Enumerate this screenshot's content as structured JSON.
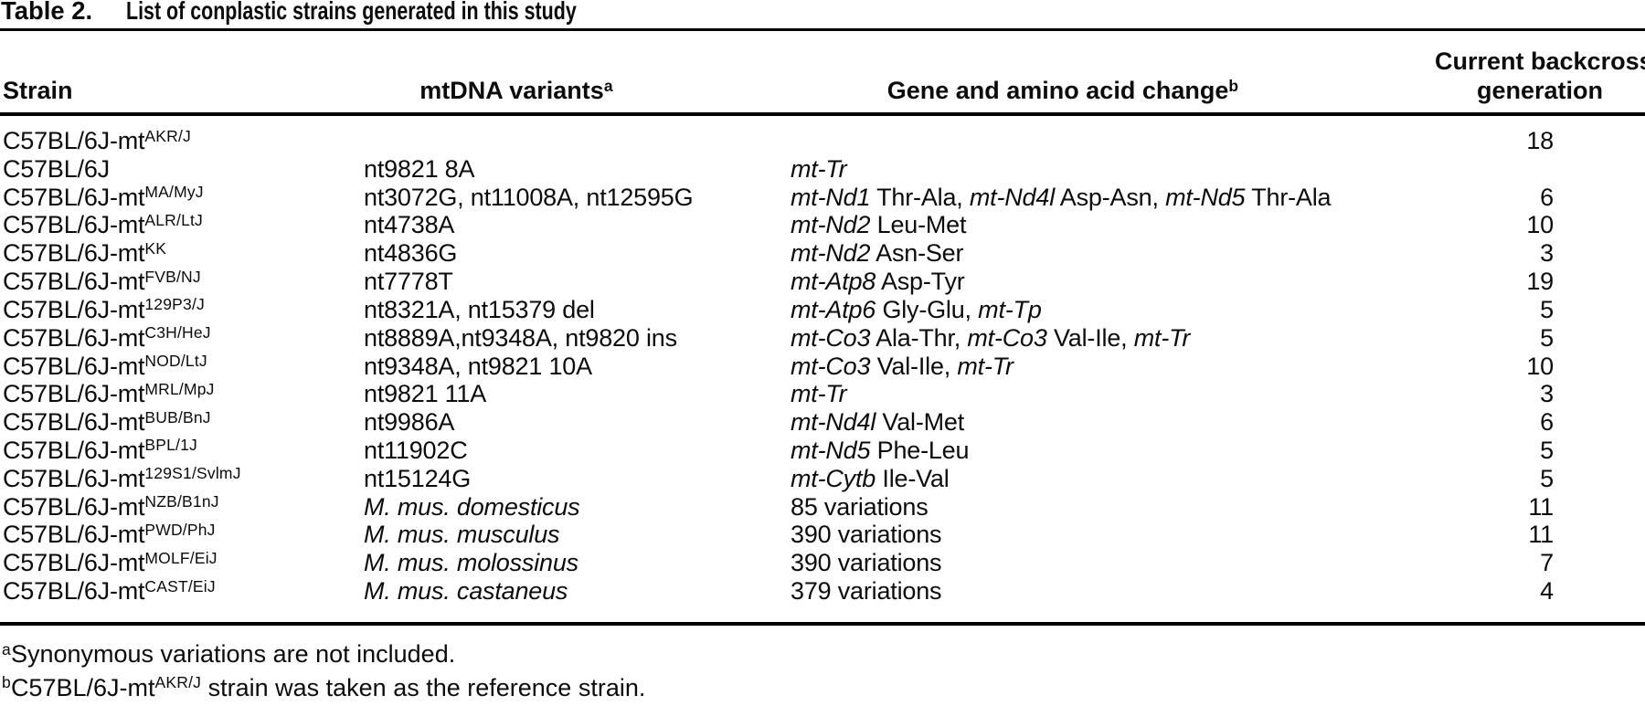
{
  "title": {
    "prefix": "Table 2.",
    "text": "List of conplastic strains generated in this study"
  },
  "header": {
    "strain": "Strain",
    "variants": "mtDNA variants^{a}",
    "gene": "Gene and amino acid change^{b}",
    "generation_line1": "Current backcross",
    "generation_line2": "generation"
  },
  "rows": [
    {
      "strain": "C57BL/6J-mt^{AKR/J}",
      "variants": "",
      "gene": "",
      "generation": "18"
    },
    {
      "strain": "C57BL/6J",
      "variants": "nt9821 8A",
      "gene": "*mt-Tr*",
      "generation": ""
    },
    {
      "strain": "C57BL/6J-mt^{MA/MyJ}",
      "variants": "nt3072G, nt11008A, nt12595G",
      "gene": "*mt-Nd1* Thr-Ala, *mt-Nd4l* Asp-Asn, *mt-Nd5* Thr-Ala",
      "generation": "6"
    },
    {
      "strain": "C57BL/6J-mt^{ALR/LtJ}",
      "variants": "nt4738A",
      "gene": "*mt-Nd2* Leu-Met",
      "generation": "10"
    },
    {
      "strain": "C57BL/6J-mt^{KK}",
      "variants": "nt4836G",
      "gene": "*mt-Nd2* Asn-Ser",
      "generation": "3"
    },
    {
      "strain": "C57BL/6J-mt^{FVB/NJ}",
      "variants": "nt7778T",
      "gene": "*mt-Atp8* Asp-Tyr",
      "generation": "19"
    },
    {
      "strain": "C57BL/6J-mt^{129P3/J}",
      "variants": "nt8321A, nt15379 del",
      "gene": "*mt-Atp6* Gly-Glu, *mt-Tp*",
      "generation": "5"
    },
    {
      "strain": "C57BL/6J-mt^{C3H/HeJ}",
      "variants": "nt8889A,nt9348A, nt9820 ins",
      "gene": "*mt-Co3* Ala-Thr, *mt-Co3* Val-Ile, *mt-Tr*",
      "generation": "5"
    },
    {
      "strain": "C57BL/6J-mt^{NOD/LtJ}",
      "variants": "nt9348A, nt9821 10A",
      "gene": "*mt-Co3* Val-Ile, *mt-Tr*",
      "generation": "10"
    },
    {
      "strain": "C57BL/6J-mt^{MRL/MpJ}",
      "variants": "nt9821 11A",
      "gene": "*mt-Tr*",
      "generation": "3"
    },
    {
      "strain": "C57BL/6J-mt^{BUB/BnJ}",
      "variants": "nt9986A",
      "gene": "*mt-Nd4l* Val-Met",
      "generation": "6"
    },
    {
      "strain": "C57BL/6J-mt^{BPL/1J}",
      "variants": "nt11902C",
      "gene": "*mt-Nd5* Phe-Leu",
      "generation": "5"
    },
    {
      "strain": "C57BL/6J-mt^{129S1/SvlmJ}",
      "variants": "nt15124G",
      "gene": "*mt-Cytb* Ile-Val",
      "generation": "5"
    },
    {
      "strain": "C57BL/6J-mt^{NZB/B1nJ}",
      "variants": "*M. mus. domesticus*",
      "gene": "85 variations",
      "generation": "11"
    },
    {
      "strain": "C57BL/6J-mt^{PWD/PhJ}",
      "variants": "*M. mus. musculus*",
      "gene": "390 variations",
      "generation": "11"
    },
    {
      "strain": "C57BL/6J-mt^{MOLF/EiJ}",
      "variants": "*M. mus. molossinus*",
      "gene": "390 variations",
      "generation": "7"
    },
    {
      "strain": "C57BL/6J-mt^{CAST/EiJ}",
      "variants": "*M. mus. castaneus*",
      "gene": "379 variations",
      "generation": "4"
    }
  ],
  "footnotes": [
    "^{a}Synonymous variations are not included.",
    "^{b}C57BL/6J-mt^{AKR/J} strain was taken as the reference strain."
  ]
}
